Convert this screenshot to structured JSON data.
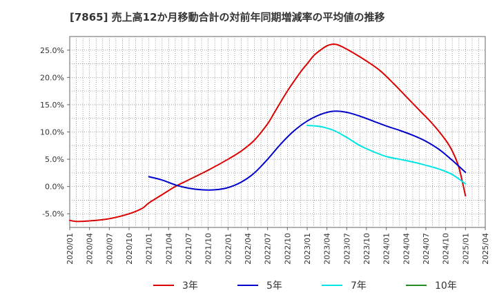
{
  "chart_data": {
    "type": "line",
    "title": "[7865]  売上高12か月移動合計の対前年同期増減率の平均値の推移",
    "xlabel": "",
    "ylabel": "",
    "ylim": [
      -7.5,
      27.5
    ],
    "xlim": [
      "2020-01",
      "2025-04"
    ],
    "y_ticks": [
      -5.0,
      0.0,
      5.0,
      10.0,
      15.0,
      20.0,
      25.0
    ],
    "y_tick_labels": [
      "-5.0%",
      "0.0%",
      "5.0%",
      "10.0%",
      "15.0%",
      "20.0%",
      "25.0%"
    ],
    "x_ticks": [
      "2020/01",
      "2020/04",
      "2020/07",
      "2020/10",
      "2021/01",
      "2021/04",
      "2021/07",
      "2021/10",
      "2022/01",
      "2022/04",
      "2022/07",
      "2022/10",
      "2023/01",
      "2023/04",
      "2023/07",
      "2023/10",
      "2024/01",
      "2024/04",
      "2024/07",
      "2024/10",
      "2025/01",
      "2025/04"
    ],
    "grid": true,
    "legend_position": "bottom",
    "series": [
      {
        "name": "3年",
        "color": "#dd0000",
        "points": [
          [
            "2020-01",
            -6.2
          ],
          [
            "2020-02",
            -6.4
          ],
          [
            "2020-04",
            -6.3
          ],
          [
            "2020-07",
            -5.9
          ],
          [
            "2020-10",
            -5.0
          ],
          [
            "2020-12",
            -4.0
          ],
          [
            "2021-01",
            -3.0
          ],
          [
            "2021-03",
            -1.5
          ],
          [
            "2021-05",
            0.0
          ],
          [
            "2021-07",
            1.2
          ],
          [
            "2021-10",
            3.0
          ],
          [
            "2022-01",
            5.0
          ],
          [
            "2022-03",
            6.5
          ],
          [
            "2022-05",
            8.5
          ],
          [
            "2022-07",
            11.5
          ],
          [
            "2022-08",
            13.5
          ],
          [
            "2022-10",
            17.5
          ],
          [
            "2022-12",
            21.0
          ],
          [
            "2023-01",
            22.5
          ],
          [
            "2023-02",
            24.0
          ],
          [
            "2023-03",
            25.0
          ],
          [
            "2023-04",
            25.8
          ],
          [
            "2023-05",
            26.1
          ],
          [
            "2023-06",
            25.8
          ],
          [
            "2023-08",
            24.5
          ],
          [
            "2023-10",
            23.0
          ],
          [
            "2023-12",
            21.3
          ],
          [
            "2024-02",
            19.0
          ],
          [
            "2024-04",
            16.5
          ],
          [
            "2024-06",
            14.0
          ],
          [
            "2024-08",
            11.5
          ],
          [
            "2024-10",
            8.5
          ],
          [
            "2024-11",
            6.5
          ],
          [
            "2024-12",
            3.5
          ],
          [
            "2025-01",
            -1.7
          ]
        ]
      },
      {
        "name": "5年",
        "color": "#0000cc",
        "points": [
          [
            "2021-01",
            1.8
          ],
          [
            "2021-03",
            1.2
          ],
          [
            "2021-05",
            0.3
          ],
          [
            "2021-07",
            -0.3
          ],
          [
            "2021-09",
            -0.6
          ],
          [
            "2021-11",
            -0.6
          ],
          [
            "2022-01",
            -0.2
          ],
          [
            "2022-03",
            0.8
          ],
          [
            "2022-05",
            2.5
          ],
          [
            "2022-07",
            5.0
          ],
          [
            "2022-09",
            7.8
          ],
          [
            "2022-11",
            10.2
          ],
          [
            "2023-01",
            12.0
          ],
          [
            "2023-03",
            13.2
          ],
          [
            "2023-05",
            13.8
          ],
          [
            "2023-07",
            13.6
          ],
          [
            "2023-09",
            12.9
          ],
          [
            "2023-11",
            12.0
          ],
          [
            "2024-01",
            11.1
          ],
          [
            "2024-03",
            10.3
          ],
          [
            "2024-05",
            9.4
          ],
          [
            "2024-07",
            8.3
          ],
          [
            "2024-09",
            6.8
          ],
          [
            "2024-11",
            4.8
          ],
          [
            "2025-01",
            2.6
          ]
        ]
      },
      {
        "name": "7年",
        "color": "#00e5e5",
        "points": [
          [
            "2023-01",
            11.2
          ],
          [
            "2023-03",
            11.0
          ],
          [
            "2023-05",
            10.3
          ],
          [
            "2023-07",
            9.0
          ],
          [
            "2023-09",
            7.5
          ],
          [
            "2023-11",
            6.4
          ],
          [
            "2024-01",
            5.5
          ],
          [
            "2024-03",
            5.0
          ],
          [
            "2024-05",
            4.5
          ],
          [
            "2024-07",
            3.9
          ],
          [
            "2024-09",
            3.2
          ],
          [
            "2024-11",
            2.2
          ],
          [
            "2025-01",
            0.5
          ]
        ]
      },
      {
        "name": "10年",
        "color": "#228b22",
        "points": []
      }
    ]
  }
}
